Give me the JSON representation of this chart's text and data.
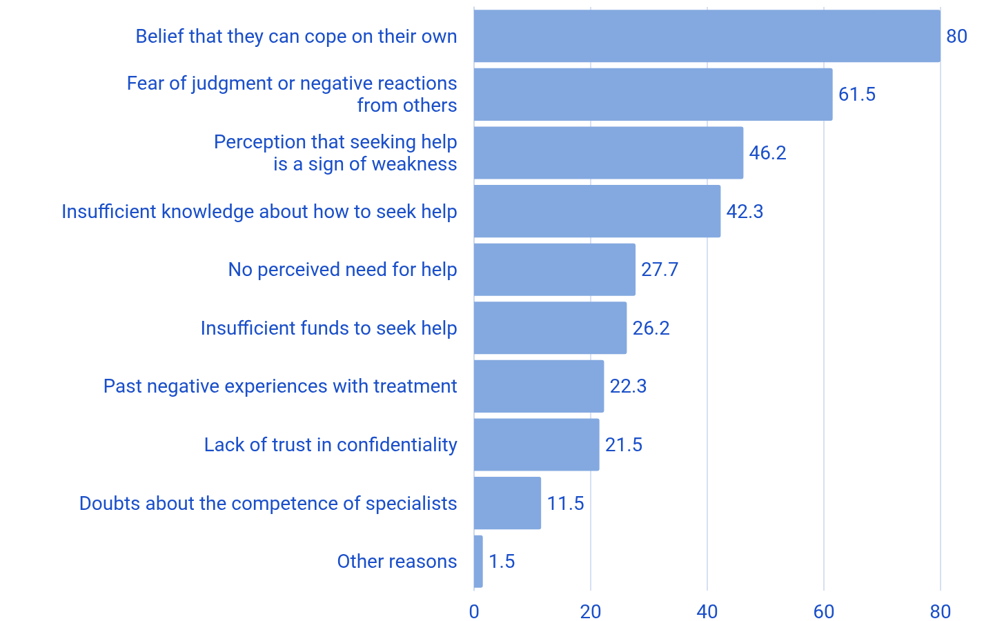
{
  "chart_data": {
    "type": "bar",
    "orientation": "horizontal",
    "categories": [
      "Belief that they can cope on their own",
      "Fear of judgment or negative reactions\nfrom others",
      "Perception that seeking help\nis a sign of weakness",
      "Insufficient knowledge about how to seek help",
      "No perceived need for help",
      "Insufficient funds to seek help",
      "Past negative experiences with treatment",
      "Lack of trust in confidentiality",
      "Doubts about the competence of specialists",
      "Other reasons"
    ],
    "values": [
      80,
      61.5,
      46.2,
      42.3,
      27.7,
      26.2,
      22.3,
      21.5,
      11.5,
      1.5
    ],
    "color": "#84a9e0",
    "xlim": [
      0,
      80
    ],
    "xticks": [
      0,
      20,
      40,
      60,
      80
    ],
    "grid": "x",
    "data_labels": true
  }
}
